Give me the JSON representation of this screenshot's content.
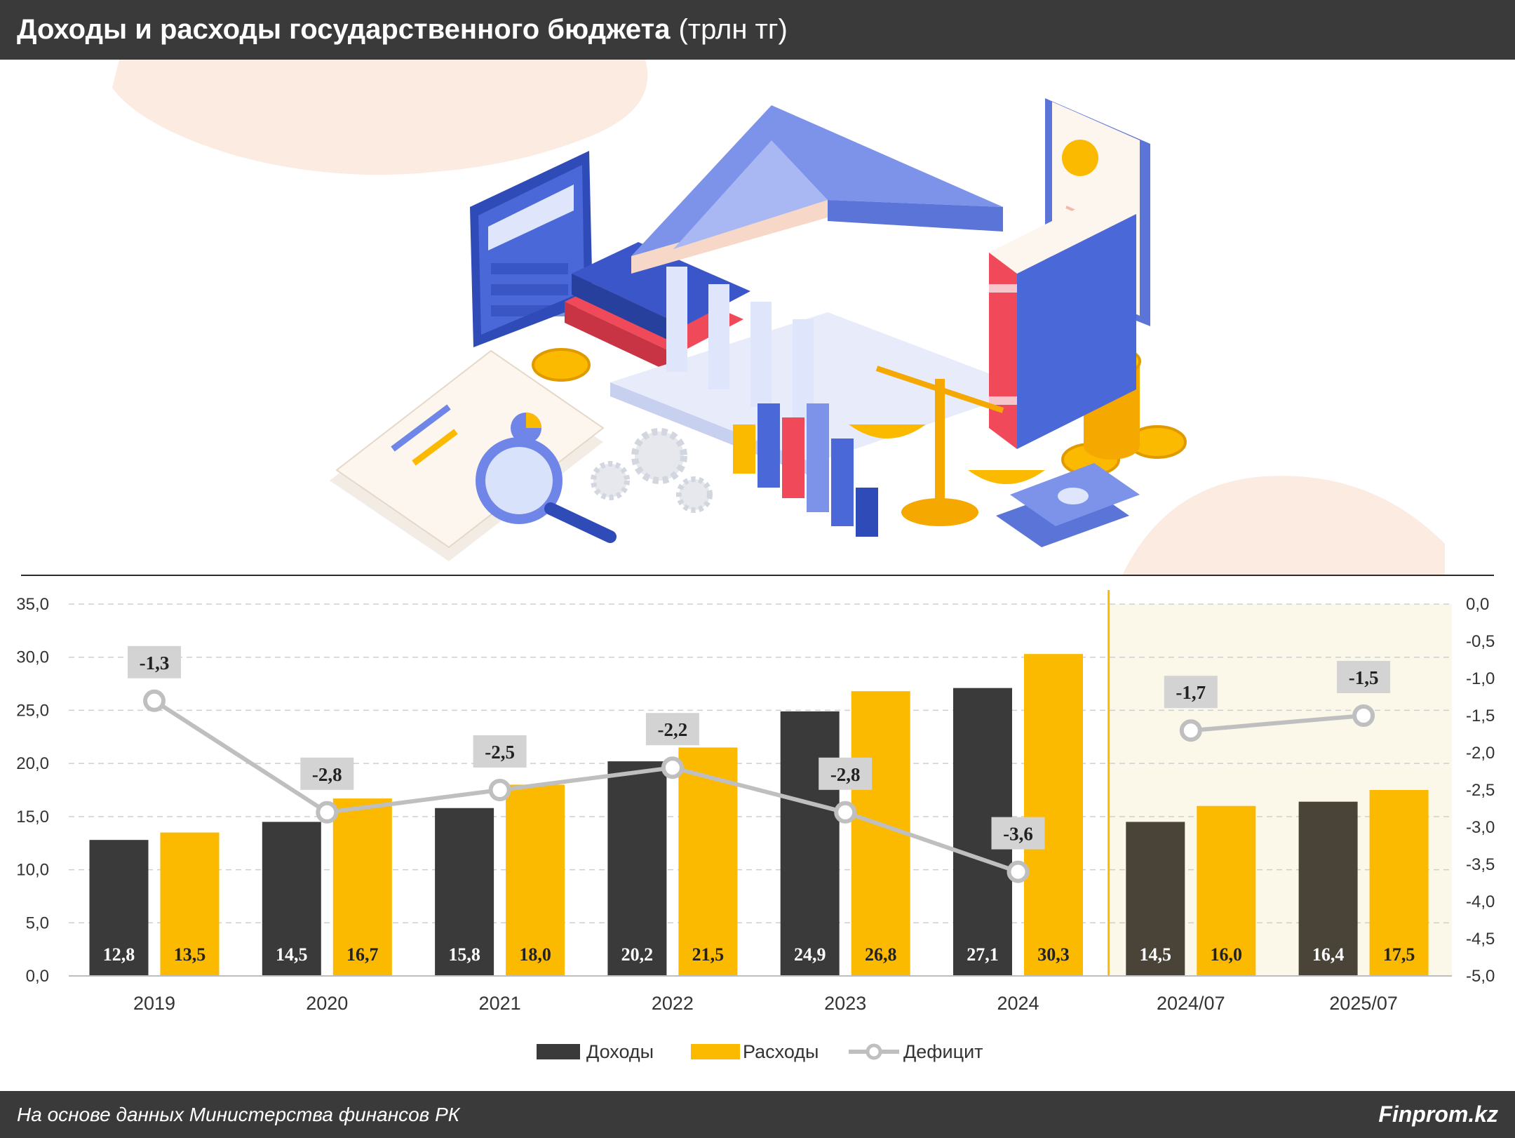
{
  "header": {
    "title": "Доходы и расходы государственного бюджета",
    "unit": "(трлн тг)"
  },
  "footer": {
    "source": "На основе данных Министерства финансов РК",
    "brand": "Finprom.kz"
  },
  "colors": {
    "income": "#3a3a3a",
    "expense": "#fbb900",
    "deficit_line": "#bfbfbf",
    "label_box": "#d3d3d3",
    "highlight_bg": "#fbf8ea",
    "highlight_line": "#fbb900"
  },
  "icons": [
    "calculator-icon",
    "bank-building-icon",
    "book-icon",
    "certificate-icon",
    "coins-icon",
    "scales-icon",
    "magnifier-icon",
    "banknotes-icon",
    "gears-icon",
    "bar-graph-icon",
    "report-document-icon"
  ],
  "chart_data": {
    "type": "bar",
    "categories": [
      "2019",
      "2020",
      "2021",
      "2022",
      "2023",
      "2024",
      "2024/07",
      "2025/07"
    ],
    "highlighted_categories": [
      "2024/07",
      "2025/07"
    ],
    "series": [
      {
        "name": "Доходы",
        "type": "bar",
        "axis": "left",
        "values": [
          12.8,
          14.5,
          15.8,
          20.2,
          24.9,
          27.1,
          14.5,
          16.4
        ],
        "labels": [
          "12,8",
          "14,5",
          "15,8",
          "20,2",
          "24,9",
          "27,1",
          "14,5",
          "16,4"
        ]
      },
      {
        "name": "Расходы",
        "type": "bar",
        "axis": "left",
        "values": [
          13.5,
          16.7,
          18.0,
          21.5,
          26.8,
          30.3,
          16.0,
          17.5
        ],
        "labels": [
          "13,5",
          "16,7",
          "18,0",
          "21,5",
          "26,8",
          "30,3",
          "16,0",
          "17,5"
        ]
      },
      {
        "name": "Дефицит",
        "type": "line",
        "axis": "right",
        "values": [
          -1.3,
          -2.8,
          -2.5,
          -2.2,
          -2.8,
          -3.6,
          -1.7,
          -1.5
        ],
        "labels": [
          "-1,3",
          "-2,8",
          "-2,5",
          "-2,2",
          "-2,8",
          "-3,6",
          "-1,7",
          "-1,5"
        ],
        "line_breaks_before": [
          "2024/07"
        ]
      }
    ],
    "y_left": {
      "min": 0,
      "max": 35,
      "step": 5,
      "tick_labels": [
        "0,0",
        "5,0",
        "10,0",
        "15,0",
        "20,0",
        "25,0",
        "30,0",
        "35,0"
      ]
    },
    "y_right": {
      "min": -5,
      "max": 0,
      "step": 0.5,
      "tick_labels": [
        "-5,0",
        "-4,5",
        "-4,0",
        "-3,5",
        "-3,0",
        "-2,5",
        "-2,0",
        "-1,5",
        "-1,0",
        "-0,5",
        "0,0"
      ]
    },
    "grid": true,
    "legend": {
      "position": "bottom",
      "entries": [
        "Доходы",
        "Расходы",
        "Дефицит"
      ]
    }
  }
}
